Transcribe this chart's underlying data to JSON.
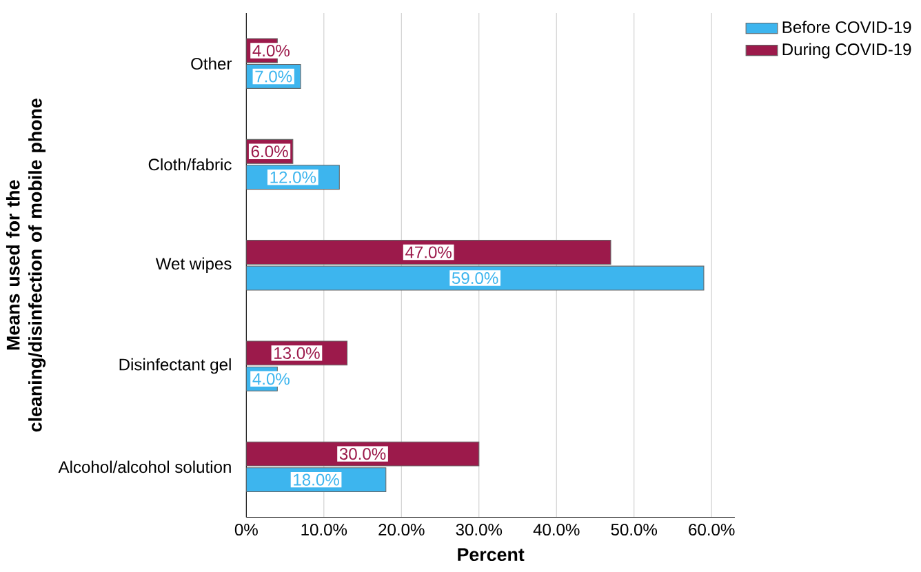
{
  "chart_data": {
    "type": "bar",
    "orientation": "horizontal",
    "xlabel": "Percent",
    "ylabel": "Means used for the cleaning/disinfection of mobile phone",
    "categories": [
      "Other",
      "Cloth/fabric",
      "Wet wipes",
      "Disinfectant gel",
      "Alcohol/alcohol solution"
    ],
    "series": [
      {
        "name": "Before COVID-19",
        "color": "#3db5ee",
        "values": [
          7,
          12,
          59,
          4,
          18
        ],
        "value_labels": [
          "7.0%",
          "12.0%",
          "59.0%",
          "4.0%",
          "18.0%"
        ]
      },
      {
        "name": "During COVID-19",
        "color": "#9c1a4b",
        "values": [
          4,
          6,
          47,
          13,
          30
        ],
        "value_labels": [
          "4.0%",
          "6.0%",
          "47.0%",
          "13.0%",
          "30.0%"
        ]
      }
    ],
    "xlim": [
      0,
      63
    ],
    "xticks": [
      {
        "value": 0,
        "label": "0%"
      },
      {
        "value": 10,
        "label": "10.0%"
      },
      {
        "value": 20,
        "label": "20.0%"
      },
      {
        "value": 30,
        "label": "30.0%"
      },
      {
        "value": 40,
        "label": "40.0%"
      },
      {
        "value": 50,
        "label": "50.0%"
      },
      {
        "value": 60,
        "label": "60.0%"
      }
    ],
    "grid": "x",
    "legend": "top right"
  }
}
